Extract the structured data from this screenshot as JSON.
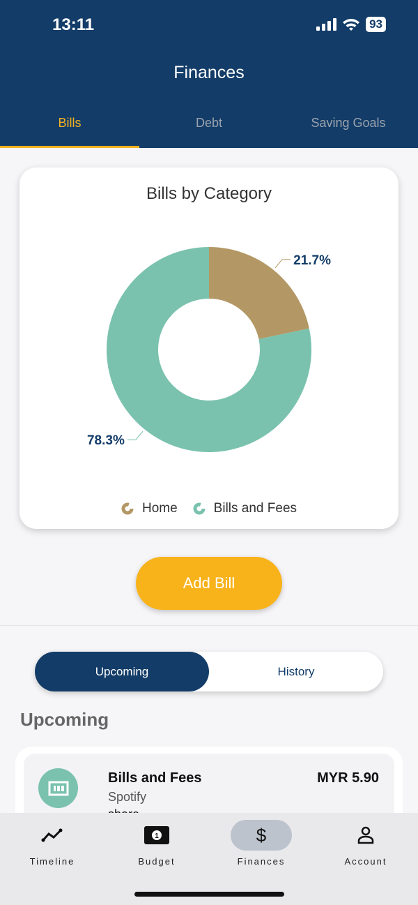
{
  "status": {
    "time": "13:11",
    "battery": "93"
  },
  "header": {
    "title": "Finances",
    "tabs": [
      {
        "label": "Bills",
        "active": true
      },
      {
        "label": "Debt"
      },
      {
        "label": "Saving Goals"
      }
    ]
  },
  "chart_data": {
    "type": "pie",
    "donut": true,
    "title": "Bills by Category",
    "categories": [
      "Home",
      "Bills and Fees"
    ],
    "values": [
      21.7,
      78.3
    ],
    "labels": [
      "21.7%",
      "78.3%"
    ],
    "colors": [
      "#b39866",
      "#7ac2ae"
    ],
    "legend": "bottom"
  },
  "add_bill": "Add Bill",
  "segment": {
    "options": [
      "Upcoming",
      "History"
    ],
    "selected": "Upcoming"
  },
  "section_title": "Upcoming",
  "bills": [
    {
      "category": "Bills and Fees",
      "name": "Spotify",
      "note": "share",
      "amount": "MYR 5.90"
    }
  ],
  "nav": [
    {
      "label": "Timeline",
      "icon": "timeline-icon"
    },
    {
      "label": "Budget",
      "icon": "money-icon"
    },
    {
      "label": "Finances",
      "icon": "dollar-icon",
      "active": true
    },
    {
      "label": "Account",
      "icon": "person-icon"
    }
  ],
  "colors": {
    "primary": "#133c68",
    "accent": "#f3b21f"
  }
}
